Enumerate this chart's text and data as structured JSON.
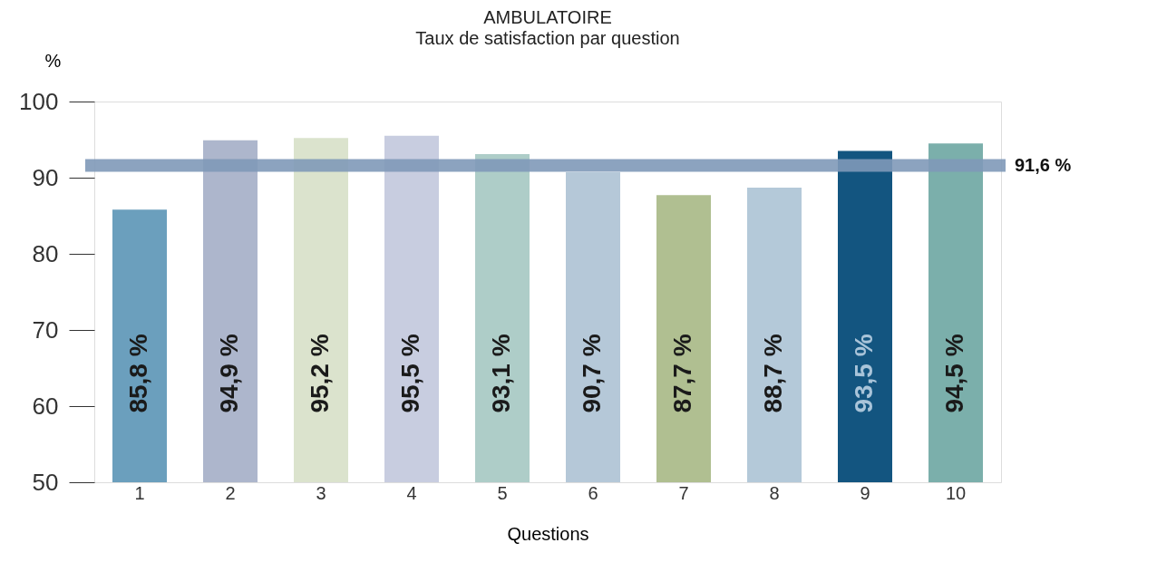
{
  "chart_data": {
    "type": "bar",
    "title": "AMBULATOIRE",
    "subtitle": "Taux de satisfaction par question",
    "xlabel": "Questions",
    "ylabel": "%",
    "categories": [
      "1",
      "2",
      "3",
      "4",
      "5",
      "6",
      "7",
      "8",
      "9",
      "10"
    ],
    "values": [
      85.8,
      94.9,
      95.2,
      95.5,
      93.1,
      90.7,
      87.7,
      88.7,
      93.5,
      94.5
    ],
    "colors": [
      "#6b9fbd",
      "#adb6cc",
      "#dbe3cd",
      "#c8cde0",
      "#aecdc8",
      "#b5c8d8",
      "#b0bf91",
      "#b4c9d9",
      "#135580",
      "#7bafab"
    ],
    "value_labels": [
      "85,8 %",
      "94,9 %",
      "95,2 %",
      "95,5 %",
      "93,1 %",
      "90,7 %",
      "87,7 %",
      "88,7 %",
      "93,5 %",
      "94,5 %"
    ],
    "ylim": [
      50,
      100
    ],
    "yticks": [
      50,
      60,
      70,
      80,
      90,
      100
    ],
    "grid": false,
    "ref_lines": [
      {
        "axis": "y",
        "value": 91.6,
        "label": "91,6 %",
        "color": "#7f99b8"
      }
    ]
  }
}
